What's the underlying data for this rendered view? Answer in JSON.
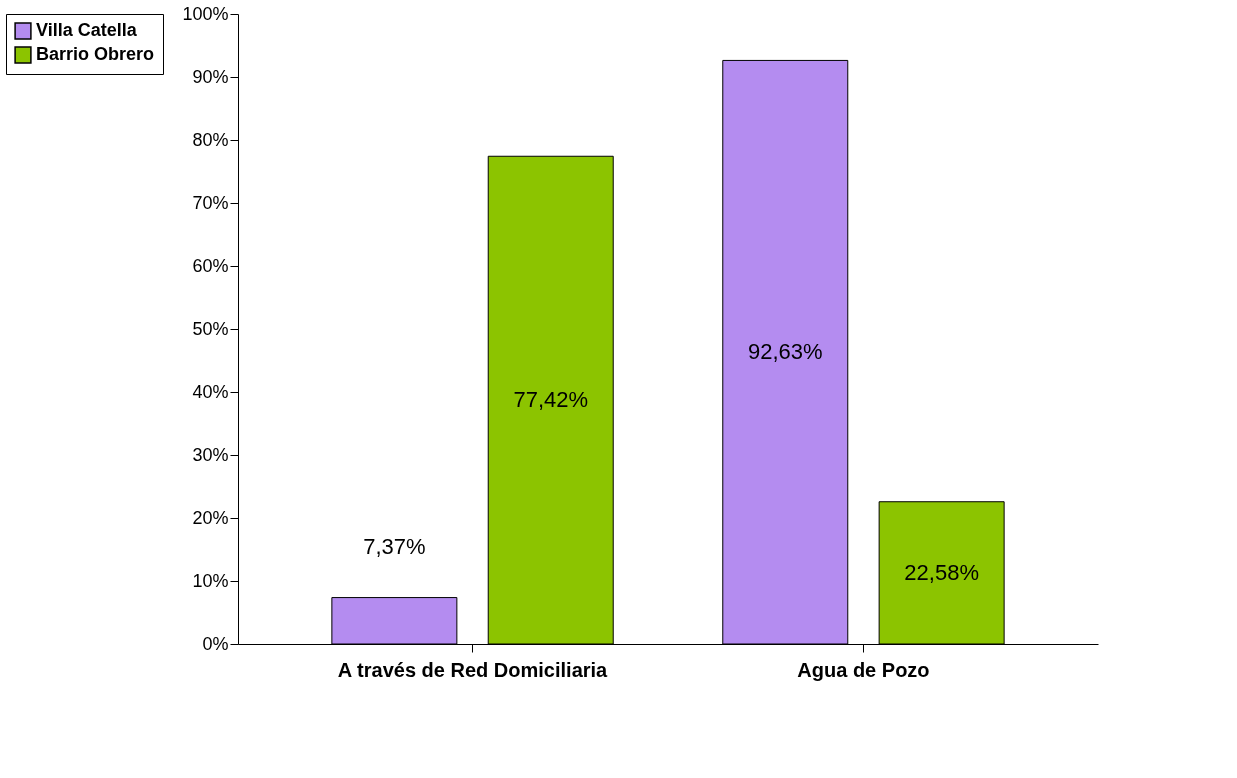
{
  "chart_data": {
    "type": "bar",
    "categories": [
      "A través de Red Domiciliaria",
      "Agua de Pozo"
    ],
    "series": [
      {
        "name": "Villa Catella",
        "color": "#b48cf0",
        "values": [
          7.37,
          92.63
        ],
        "value_labels": [
          "7,37%",
          "92,63%"
        ]
      },
      {
        "name": "Barrio Obrero",
        "color": "#8cc400",
        "values": [
          77.42,
          22.58
        ],
        "value_labels": [
          "77,42%",
          "22,58%"
        ]
      }
    ],
    "ylim": [
      0,
      100
    ],
    "yticks": [
      {
        "value": 0,
        "label": "0%"
      },
      {
        "value": 10,
        "label": "10%"
      },
      {
        "value": 20,
        "label": "20%"
      },
      {
        "value": 30,
        "label": "30%"
      },
      {
        "value": 40,
        "label": "40%"
      },
      {
        "value": 50,
        "label": "50%"
      },
      {
        "value": 60,
        "label": "60%"
      },
      {
        "value": 70,
        "label": "70%"
      },
      {
        "value": 80,
        "label": "80%"
      },
      {
        "value": 90,
        "label": "90%"
      },
      {
        "value": 100,
        "label": "100%"
      }
    ],
    "grid": false,
    "legend": "left"
  }
}
